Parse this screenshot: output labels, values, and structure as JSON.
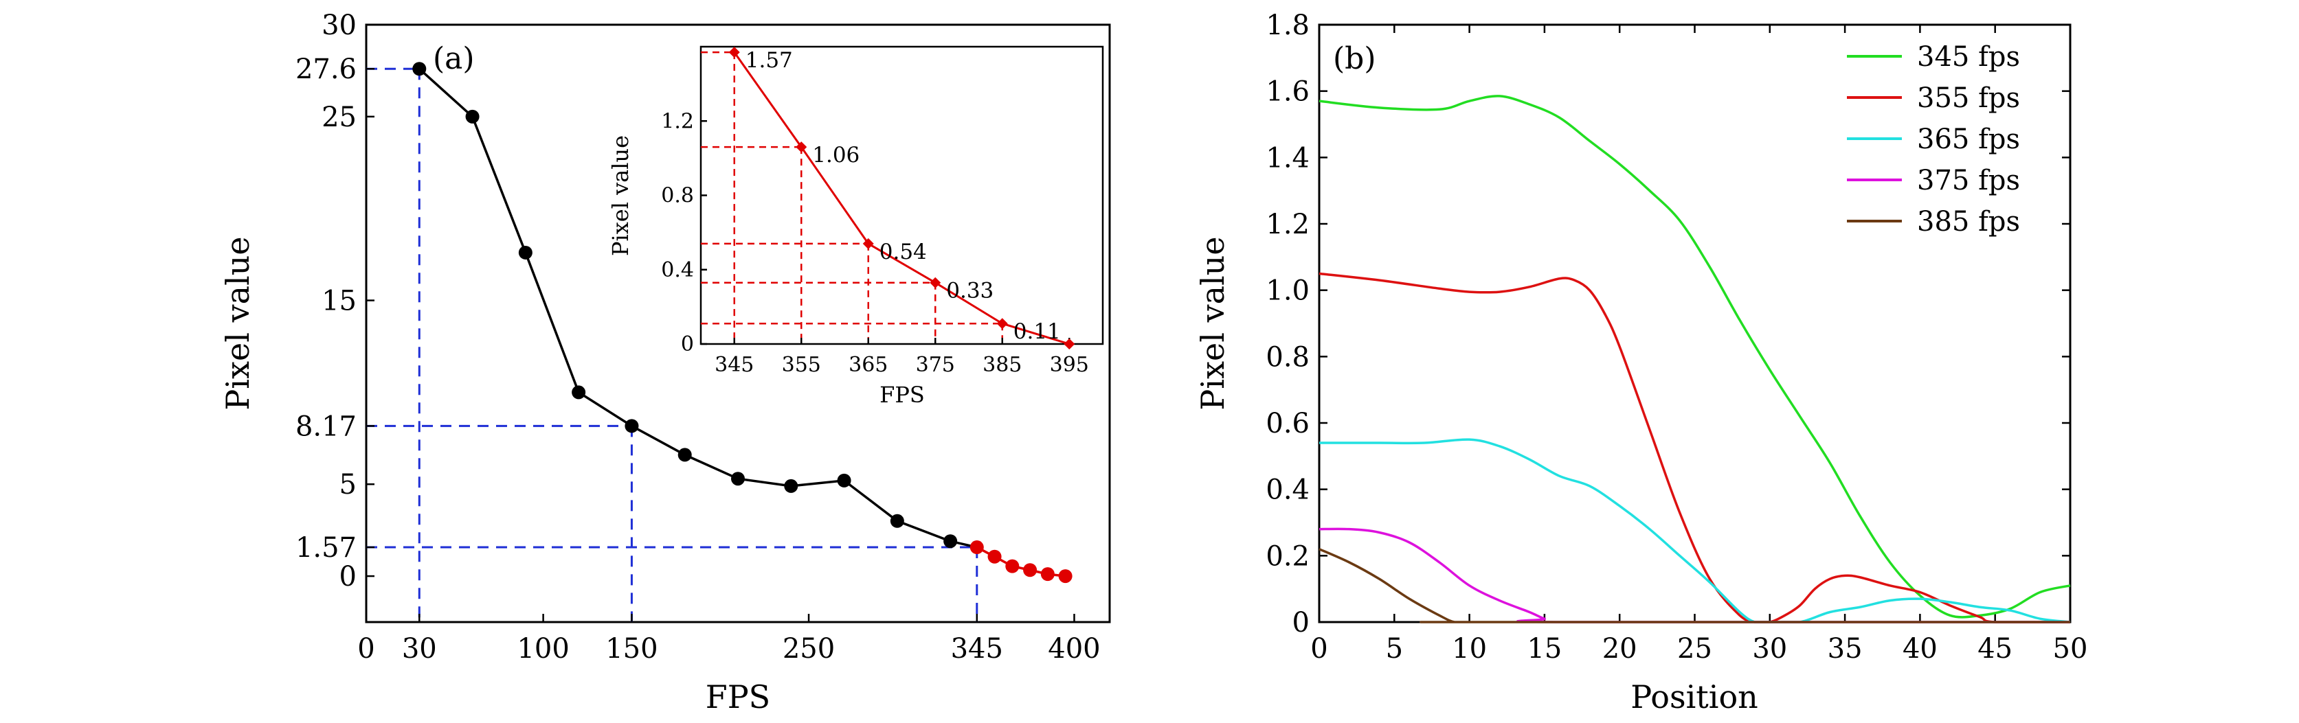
{
  "chart_data": [
    {
      "type": "line",
      "panel_label": "(a)",
      "xlabel": "FPS",
      "ylabel": "Pixel value",
      "x_ticks": [
        0,
        30,
        100,
        150,
        250,
        345,
        400
      ],
      "y_ticks": [
        0,
        1.57,
        5,
        8.17,
        15,
        25,
        27.6,
        30
      ],
      "xlim": [
        0,
        420
      ],
      "ylim": [
        -2.5,
        30
      ],
      "series": [
        {
          "color": "#000000",
          "x": [
            30,
            60,
            90,
            120,
            150,
            180,
            210,
            240,
            270,
            300,
            330
          ],
          "y": [
            27.6,
            25.0,
            17.6,
            10.0,
            8.17,
            6.6,
            5.3,
            4.9,
            5.2,
            3.0,
            1.9
          ]
        },
        {
          "color": "#e00000",
          "x": [
            345,
            355,
            365,
            375,
            385,
            395
          ],
          "y": [
            1.57,
            1.06,
            0.54,
            0.33,
            0.11,
            0.0
          ]
        }
      ],
      "reference_points": [
        {
          "x": 30,
          "y": 27.6
        },
        {
          "x": 150,
          "y": 8.17
        },
        {
          "x": 345,
          "y": 1.57
        }
      ],
      "inset": {
        "type": "line",
        "xlabel": "FPS",
        "ylabel": "Pixel value",
        "x_ticks": [
          345,
          355,
          365,
          375,
          385,
          395
        ],
        "y_ticks": [
          "0",
          "0.4",
          "0.8",
          "1.2"
        ],
        "xlim": [
          340,
          400
        ],
        "ylim": [
          0,
          1.6
        ],
        "x": [
          345,
          355,
          365,
          375,
          385,
          395
        ],
        "y": [
          1.57,
          1.06,
          0.54,
          0.33,
          0.11,
          0.0
        ],
        "labels": [
          "1.57",
          "1.06",
          "0.54",
          "0.33",
          "0.11"
        ],
        "color": "#e00000"
      }
    },
    {
      "type": "line",
      "panel_label": "(b)",
      "xlabel": "Position",
      "ylabel": "Pixel value",
      "x_ticks": [
        0,
        5,
        10,
        15,
        20,
        25,
        30,
        35,
        40,
        45,
        50
      ],
      "y_ticks": [
        "0",
        "0.2",
        "0.4",
        "0.6",
        "0.8",
        "1.0",
        "1.2",
        "1.4",
        "1.6",
        "1.8"
      ],
      "xlim": [
        0,
        50
      ],
      "ylim": [
        0,
        1.8
      ],
      "legend_position": "top-right",
      "series": [
        {
          "name": "345 fps",
          "color": "#22dd22",
          "x": [
            0,
            4,
            8,
            10,
            12,
            14,
            16,
            18,
            20,
            22,
            24,
            26,
            28,
            30,
            32,
            34,
            36,
            38,
            40,
            42,
            44,
            46,
            48,
            50
          ],
          "y": [
            1.57,
            1.55,
            1.545,
            1.57,
            1.585,
            1.56,
            1.52,
            1.45,
            1.38,
            1.3,
            1.21,
            1.07,
            0.91,
            0.76,
            0.62,
            0.48,
            0.32,
            0.18,
            0.08,
            0.02,
            0.02,
            0.04,
            0.09,
            0.11
          ]
        },
        {
          "name": "355 fps",
          "color": "#dd1111",
          "x": [
            0,
            4,
            8,
            10,
            12,
            14,
            16,
            17,
            18,
            19,
            20,
            22,
            24,
            26,
            28,
            29,
            30,
            31,
            32,
            33,
            34,
            35,
            36,
            38,
            40,
            42,
            44,
            45,
            50
          ],
          "y": [
            1.05,
            1.03,
            1.005,
            0.995,
            0.995,
            1.01,
            1.035,
            1.03,
            1.0,
            0.93,
            0.83,
            0.58,
            0.33,
            0.13,
            0.02,
            0.0,
            0.0,
            0.02,
            0.05,
            0.1,
            0.13,
            0.14,
            0.135,
            0.11,
            0.09,
            0.05,
            0.015,
            0.0,
            0.0
          ]
        },
        {
          "name": "365 fps",
          "color": "#22e0e0",
          "x": [
            0,
            4,
            7,
            10,
            12,
            14,
            16,
            18,
            20,
            22,
            24,
            26,
            28,
            29,
            30,
            32,
            34,
            36,
            38,
            40,
            42,
            44,
            46,
            48,
            50
          ],
          "y": [
            0.54,
            0.54,
            0.54,
            0.55,
            0.53,
            0.49,
            0.44,
            0.41,
            0.35,
            0.28,
            0.2,
            0.12,
            0.03,
            0.0,
            0.0,
            0.0,
            0.03,
            0.045,
            0.065,
            0.07,
            0.06,
            0.045,
            0.035,
            0.01,
            0.0
          ]
        },
        {
          "name": "375 fps",
          "color": "#dd11dd",
          "x": [
            0,
            2,
            4,
            6,
            8,
            10,
            12,
            14,
            15,
            16,
            50
          ],
          "y": [
            0.28,
            0.28,
            0.27,
            0.24,
            0.18,
            0.11,
            0.065,
            0.03,
            0.01,
            0.0,
            0.0
          ]
        },
        {
          "name": "385 fps",
          "color": "#6b3a12",
          "x": [
            0,
            2,
            4,
            6,
            8,
            9,
            10,
            50
          ],
          "y": [
            0.22,
            0.18,
            0.13,
            0.07,
            0.02,
            0.0,
            0.0,
            0.0
          ]
        }
      ]
    }
  ]
}
